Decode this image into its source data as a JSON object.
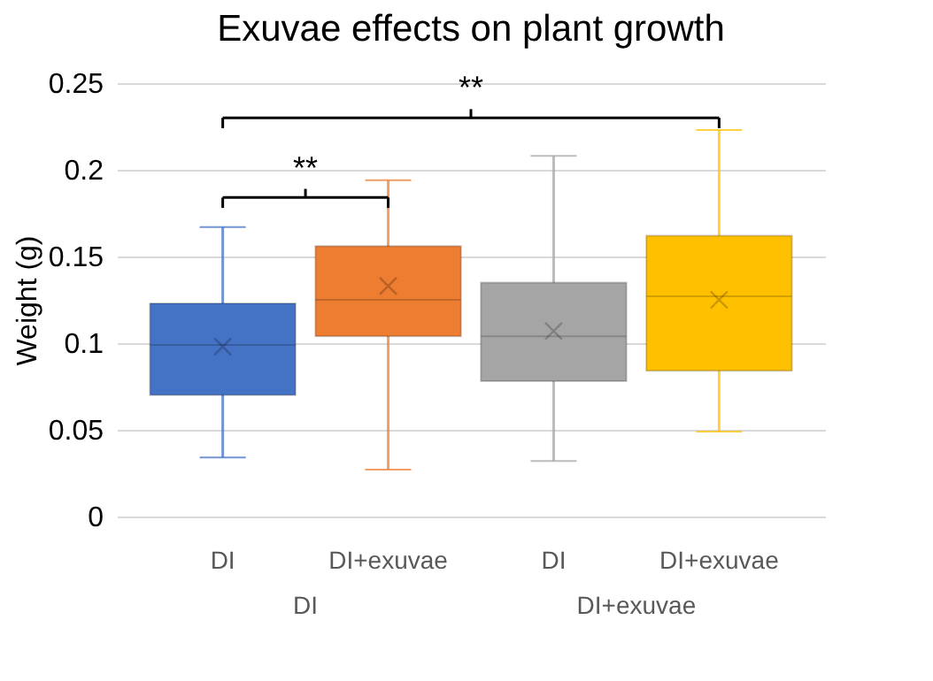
{
  "chart_data": {
    "type": "box",
    "title": "Exuvae effects on plant growth",
    "ylabel": "Weight (g)",
    "categories": [
      "DI",
      "DI+exuvae",
      "DI",
      "DI+exuvae"
    ],
    "boxes": [
      {
        "low": 0.034,
        "q1": 0.07,
        "median": 0.099,
        "q3": 0.123,
        "high": 0.167,
        "mean": 0.098
      },
      {
        "low": 0.027,
        "q1": 0.104,
        "median": 0.125,
        "q3": 0.156,
        "high": 0.194,
        "mean": 0.133
      },
      {
        "low": 0.032,
        "q1": 0.078,
        "median": 0.104,
        "q3": 0.135,
        "high": 0.208,
        "mean": 0.107
      },
      {
        "low": 0.049,
        "q1": 0.084,
        "median": 0.127,
        "q3": 0.162,
        "high": 0.223,
        "mean": 0.125
      }
    ],
    "colors": [
      "#4472c4",
      "#ed7d31",
      "#a5a5a5",
      "#ffc000"
    ],
    "ylim": [
      0,
      0.25
    ],
    "yticks": [
      0,
      0.05,
      0.1,
      0.15,
      0.2,
      0.25
    ],
    "grid": "y",
    "annotations": [
      "**",
      "**",
      "DI",
      "DI+exuvae"
    ]
  }
}
